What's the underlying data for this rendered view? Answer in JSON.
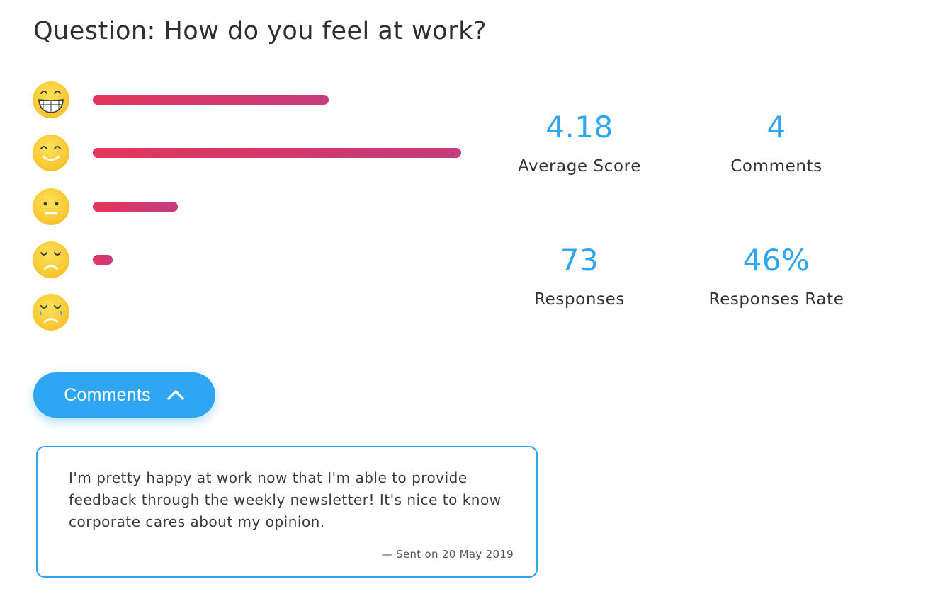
{
  "question": {
    "prefix": "Question:",
    "text": "How do you feel at work?",
    "full": "Question: How do you feel at work?"
  },
  "ratings": [
    {
      "icon": "grinning-face-icon",
      "level": 0.64
    },
    {
      "icon": "smiling-face-icon",
      "level": 1.0
    },
    {
      "icon": "neutral-face-icon",
      "level": 0.23
    },
    {
      "icon": "sad-face-icon",
      "level": 0.05
    },
    {
      "icon": "crying-face-icon",
      "level": 0.0
    }
  ],
  "stats": {
    "average_score": {
      "value": "4.18",
      "label": "Average Score"
    },
    "comments": {
      "value": "4",
      "label": "Comments"
    },
    "responses": {
      "value": "73",
      "label": "Responses"
    },
    "response_rate": {
      "value": "46%",
      "label": "Responses Rate"
    }
  },
  "comments_button": {
    "label": "Comments",
    "icon": "chevron-up-icon"
  },
  "comment": {
    "text": "I'm pretty happy at work now that I'm able to provide feedback through the weekly newsletter! It's nice to know corporate cares about my opinion.",
    "meta": "— Sent on 20 May 2019"
  },
  "colors": {
    "accent": "#2ea6f2",
    "bar_start": "#e5365a",
    "bar_end": "#c43d7d",
    "emoji_yellow": "#fbd43b"
  }
}
